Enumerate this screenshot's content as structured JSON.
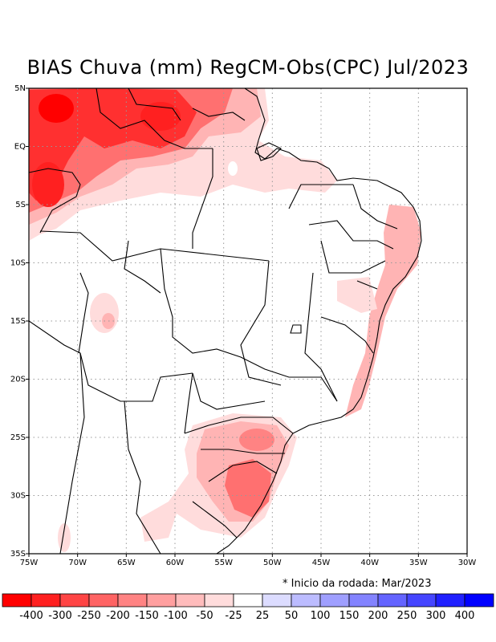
{
  "title": "BIAS Chuva (mm) RegCM-Obs(CPC) Jul/2023",
  "note": "* Inicio da rodada: Mar/2023",
  "map": {
    "lon_range": [
      -75,
      -30
    ],
    "lat_range": [
      -35,
      5
    ],
    "x_ticks": [
      {
        "lon": -75,
        "label": "75W"
      },
      {
        "lon": -70,
        "label": "70W"
      },
      {
        "lon": -65,
        "label": "65W"
      },
      {
        "lon": -60,
        "label": "60W"
      },
      {
        "lon": -55,
        "label": "55W"
      },
      {
        "lon": -50,
        "label": "50W"
      },
      {
        "lon": -45,
        "label": "45W"
      },
      {
        "lon": -40,
        "label": "40W"
      },
      {
        "lon": -35,
        "label": "35W"
      },
      {
        "lon": -30,
        "label": "30W"
      }
    ],
    "y_ticks": [
      {
        "lat": 5,
        "label": "5N"
      },
      {
        "lat": 0,
        "label": "EQ"
      },
      {
        "lat": -5,
        "label": "5S"
      },
      {
        "lat": -10,
        "label": "10S"
      },
      {
        "lat": -15,
        "label": "15S"
      },
      {
        "lat": -20,
        "label": "20S"
      },
      {
        "lat": -25,
        "label": "25S"
      },
      {
        "lat": -30,
        "label": "30S"
      },
      {
        "lat": -35,
        "label": "35S"
      }
    ],
    "grid": true
  },
  "colorbar": {
    "colors": [
      "#ff0000",
      "#ff2020",
      "#ff4545",
      "#ff6464",
      "#ff8383",
      "#ff9f9f",
      "#ffbcbc",
      "#ffdcdc",
      "#ffffff",
      "#dcdcff",
      "#bcbcff",
      "#9f9fff",
      "#8383ff",
      "#6464ff",
      "#4545ff",
      "#2020ff",
      "#0000ff"
    ],
    "labels": [
      "-400",
      "-300",
      "-250",
      "-200",
      "-150",
      "-100",
      "-50",
      "-25",
      "25",
      "50",
      "100",
      "150",
      "200",
      "250",
      "300",
      "400"
    ]
  },
  "colors": {
    "dry_strong": "#ff3030",
    "dry_mid": "#ff7070",
    "dry_light": "#ffb4b4",
    "dry_faint": "#ffdcdc"
  }
}
